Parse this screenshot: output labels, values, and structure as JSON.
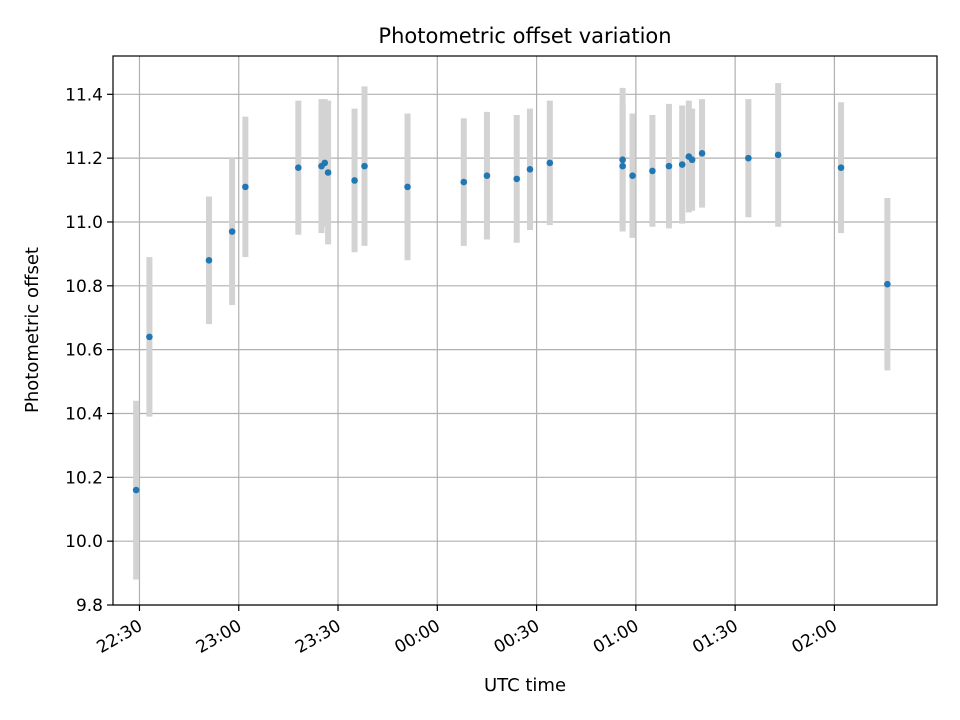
{
  "chart_data": {
    "type": "scatter",
    "title": "Photometric offset variation",
    "xlabel": "UTC time",
    "ylabel": "Photometric offset",
    "xlim": [
      "22:22",
      "02:31"
    ],
    "ylim": [
      9.8,
      11.52
    ],
    "grid": true,
    "x_ticks": [
      "22:30",
      "23:00",
      "23:30",
      "00:00",
      "00:30",
      "01:00",
      "01:30",
      "02:00"
    ],
    "y_ticks": [
      "9.8",
      "10.0",
      "10.2",
      "10.4",
      "10.6",
      "10.8",
      "11.0",
      "11.2",
      "11.4"
    ],
    "colors": {
      "point": "#1f77b4",
      "errorbar": "#d3d3d3",
      "grid": "#b0b0b0"
    },
    "series": [
      {
        "x": [
          "22:29",
          "22:33",
          "22:51",
          "22:58",
          "23:02",
          "23:18",
          "23:25",
          "23:26",
          "23:27",
          "23:35",
          "23:38",
          "23:51",
          "00:08",
          "00:15",
          "00:24",
          "00:28",
          "00:34",
          "00:56",
          "00:56",
          "00:59",
          "01:05",
          "01:10",
          "01:14",
          "01:16",
          "01:17",
          "01:20",
          "01:34",
          "01:43",
          "02:02",
          "02:16"
        ],
        "y": [
          10.16,
          10.64,
          10.88,
          10.97,
          11.11,
          11.17,
          11.175,
          11.185,
          11.155,
          11.13,
          11.175,
          11.11,
          11.125,
          11.145,
          11.135,
          11.165,
          11.185,
          11.195,
          11.175,
          11.145,
          11.16,
          11.175,
          11.18,
          11.205,
          11.195,
          11.215,
          11.2,
          11.21,
          11.17,
          10.805
        ],
        "err": [
          0.28,
          0.25,
          0.2,
          0.23,
          0.22,
          0.21,
          0.21,
          0.2,
          0.225,
          0.225,
          0.25,
          0.23,
          0.2,
          0.2,
          0.2,
          0.19,
          0.195,
          0.225,
          0.195,
          0.195,
          0.175,
          0.195,
          0.185,
          0.175,
          0.16,
          0.17,
          0.185,
          0.225,
          0.205,
          0.27
        ]
      }
    ]
  }
}
